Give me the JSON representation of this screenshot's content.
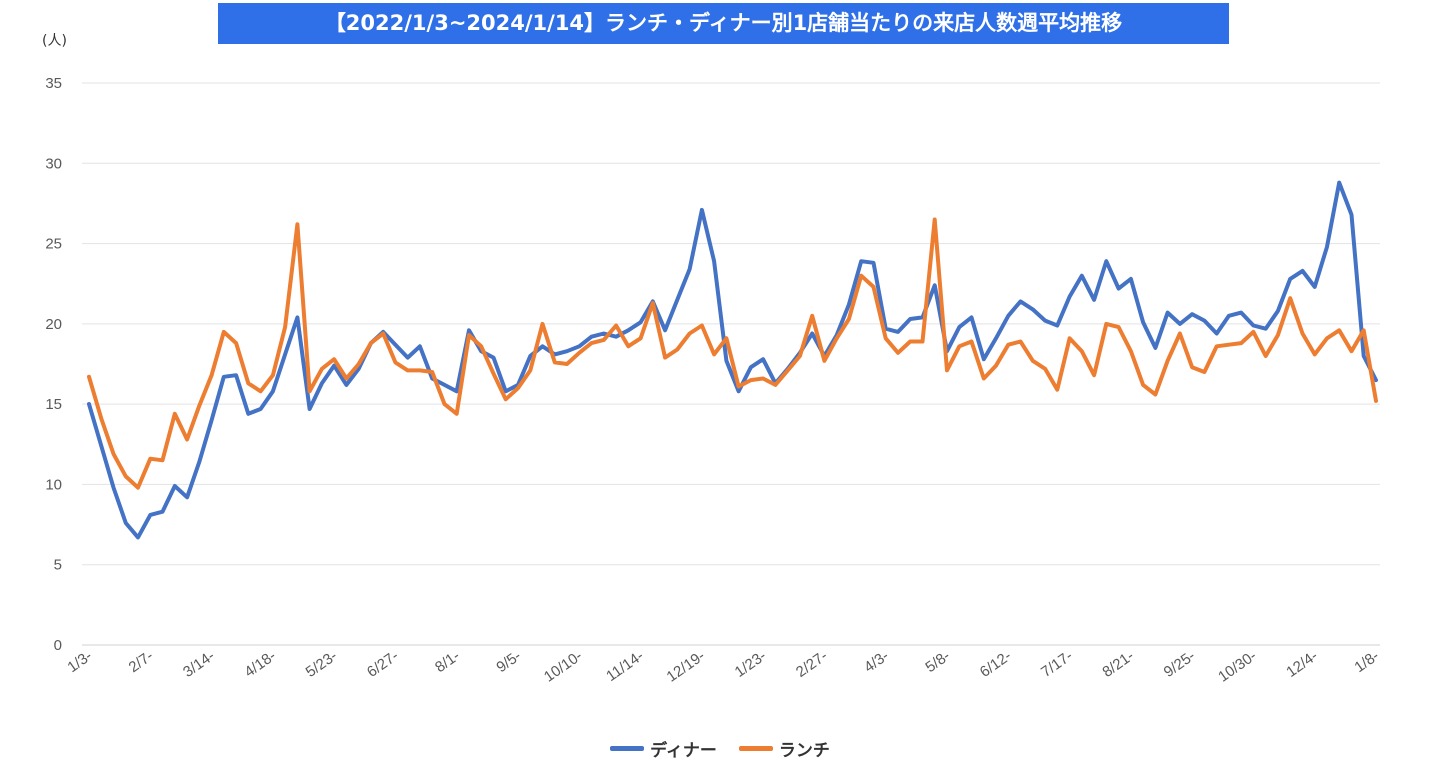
{
  "chart_data": {
    "type": "line",
    "title": "【2022/1/3~2024/1/14】ランチ・ディナー別1店舗当たりの来店人数週平均推移",
    "ylabel": "(人)",
    "xlabel": "",
    "ylim": [
      0,
      35
    ],
    "yticks": [
      0,
      5,
      10,
      15,
      20,
      25,
      30,
      35
    ],
    "grid": true,
    "legend_position": "bottom",
    "x_tick_labels": [
      {
        "index": 0,
        "label": "1/3-"
      },
      {
        "index": 5,
        "label": "2/7-"
      },
      {
        "index": 10,
        "label": "3/14-"
      },
      {
        "index": 15,
        "label": "4/18-"
      },
      {
        "index": 20,
        "label": "5/23-"
      },
      {
        "index": 25,
        "label": "6/27-"
      },
      {
        "index": 30,
        "label": "8/1-"
      },
      {
        "index": 35,
        "label": "9/5-"
      },
      {
        "index": 40,
        "label": "10/10-"
      },
      {
        "index": 45,
        "label": "11/14-"
      },
      {
        "index": 50,
        "label": "12/19-"
      },
      {
        "index": 55,
        "label": "1/23-"
      },
      {
        "index": 60,
        "label": "2/27-"
      },
      {
        "index": 65,
        "label": "4/3-"
      },
      {
        "index": 70,
        "label": "5/8-"
      },
      {
        "index": 75,
        "label": "6/12-"
      },
      {
        "index": 80,
        "label": "7/17-"
      },
      {
        "index": 85,
        "label": "8/21-"
      },
      {
        "index": 90,
        "label": "9/25-"
      },
      {
        "index": 95,
        "label": "10/30-"
      },
      {
        "index": 100,
        "label": "12/4-"
      },
      {
        "index": 105,
        "label": "1/8-"
      }
    ],
    "series": [
      {
        "name": "ディナー",
        "color": "#4472c4",
        "values": [
          15.0,
          12.4,
          9.8,
          7.6,
          6.7,
          8.1,
          8.3,
          9.9,
          9.2,
          11.4,
          14.0,
          16.7,
          16.8,
          14.4,
          14.7,
          15.8,
          18.1,
          20.4,
          14.7,
          16.3,
          17.4,
          16.2,
          17.2,
          18.8,
          19.5,
          18.7,
          17.9,
          18.6,
          16.6,
          16.2,
          15.8,
          19.6,
          18.3,
          17.9,
          15.8,
          16.2,
          18.0,
          18.6,
          18.1,
          18.3,
          18.6,
          19.2,
          19.4,
          19.2,
          19.6,
          20.1,
          21.4,
          19.6,
          21.5,
          23.4,
          27.1,
          23.9,
          17.7,
          15.8,
          17.3,
          17.8,
          16.3,
          17.2,
          18.2,
          19.4,
          18.0,
          19.3,
          21.2,
          23.9,
          23.8,
          19.7,
          19.5,
          20.3,
          20.4,
          22.4,
          18.3,
          19.8,
          20.4,
          17.8,
          19.1,
          20.5,
          21.4,
          20.9,
          20.2,
          19.9,
          21.7,
          23.0,
          21.5,
          23.9,
          22.2,
          22.8,
          20.1,
          18.5,
          20.7,
          20.0,
          20.6,
          20.2,
          19.4,
          20.5,
          20.7,
          19.9,
          19.7,
          20.8,
          22.8,
          23.3,
          22.3,
          24.8,
          28.8,
          26.8,
          18.0,
          16.5
        ]
      },
      {
        "name": "ランチ",
        "color": "#ed7d31",
        "values": [
          16.7,
          14.1,
          11.9,
          10.5,
          9.8,
          11.6,
          11.5,
          14.4,
          12.8,
          14.9,
          16.8,
          19.5,
          18.8,
          16.3,
          15.8,
          16.8,
          19.8,
          26.2,
          15.8,
          17.2,
          17.8,
          16.6,
          17.5,
          18.8,
          19.4,
          17.6,
          17.1,
          17.1,
          17.0,
          15.0,
          14.4,
          19.3,
          18.6,
          16.9,
          15.3,
          16.0,
          17.1,
          20.0,
          17.6,
          17.5,
          18.2,
          18.8,
          19.0,
          19.9,
          18.6,
          19.1,
          21.3,
          17.9,
          18.4,
          19.4,
          19.9,
          18.1,
          19.1,
          16.1,
          16.5,
          16.6,
          16.2,
          17.1,
          18.0,
          20.5,
          17.7,
          19.1,
          20.3,
          23.0,
          22.3,
          19.1,
          18.2,
          18.9,
          18.9,
          26.5,
          17.1,
          18.6,
          18.9,
          16.6,
          17.4,
          18.7,
          18.9,
          17.7,
          17.2,
          15.9,
          19.1,
          18.3,
          16.8,
          20.0,
          19.8,
          18.3,
          16.2,
          15.6,
          17.7,
          19.4,
          17.3,
          17.0,
          18.6,
          18.7,
          18.8,
          19.5,
          18.0,
          19.3,
          21.6,
          19.4,
          18.1,
          19.1,
          19.6,
          18.3,
          19.6,
          15.2
        ]
      }
    ]
  }
}
